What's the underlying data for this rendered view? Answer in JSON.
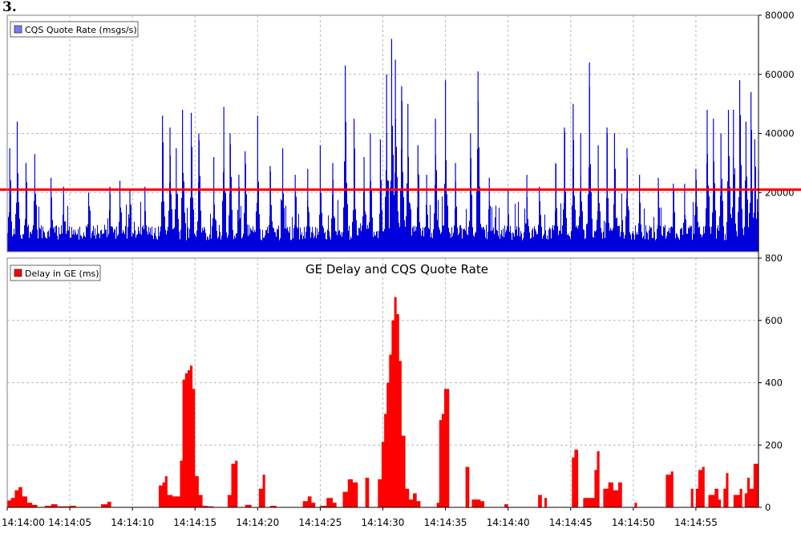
{
  "figure_label": "3.",
  "colors": {
    "rate_fill": "#0000dd",
    "delay_fill": "#ff0000",
    "threshold_line": "#ff0000",
    "grid": "#b8b8b8",
    "axis": "#000000"
  },
  "chart_data": [
    {
      "type": "area",
      "title": "",
      "legend": {
        "label": "CQS Quote Rate (msgs/s)",
        "position": "top-left",
        "swatch_color": "#7777ff"
      },
      "xlim_seconds": [
        0,
        60
      ],
      "ylim": [
        0,
        80000
      ],
      "y_ticks": [
        20000,
        40000,
        60000,
        80000
      ],
      "y_axis_side": "right",
      "grid": true,
      "threshold": 21000,
      "baseline_approx": 7000,
      "series": [
        {
          "name": "CQS Quote Rate (msgs/s)",
          "peaks": [
            [
              0.2,
              35000
            ],
            [
              0.8,
              44000
            ],
            [
              1.5,
              30000
            ],
            [
              2.2,
              33000
            ],
            [
              3.5,
              25000
            ],
            [
              4.5,
              22000
            ],
            [
              6.5,
              20000
            ],
            [
              8.2,
              22000
            ],
            [
              9.0,
              24000
            ],
            [
              9.8,
              21000
            ],
            [
              11.0,
              22000
            ],
            [
              12.4,
              46000
            ],
            [
              13.0,
              42000
            ],
            [
              13.5,
              35000
            ],
            [
              14.0,
              48000
            ],
            [
              14.7,
              47000
            ],
            [
              15.3,
              40000
            ],
            [
              16.5,
              32000
            ],
            [
              17.3,
              49000
            ],
            [
              17.8,
              40000
            ],
            [
              18.5,
              26000
            ],
            [
              19.0,
              34000
            ],
            [
              20.0,
              46000
            ],
            [
              21.0,
              29000
            ],
            [
              22.0,
              35000
            ],
            [
              23.0,
              26000
            ],
            [
              24.0,
              28000
            ],
            [
              25.0,
              36000
            ],
            [
              26.0,
              30000
            ],
            [
              27.0,
              63000
            ],
            [
              27.7,
              45000
            ],
            [
              28.5,
              32000
            ],
            [
              29.0,
              40000
            ],
            [
              29.8,
              38000
            ],
            [
              30.3,
              60000
            ],
            [
              30.7,
              72000
            ],
            [
              31.0,
              65000
            ],
            [
              31.5,
              56000
            ],
            [
              32.0,
              50000
            ],
            [
              32.8,
              36000
            ],
            [
              33.5,
              26000
            ],
            [
              34.2,
              45000
            ],
            [
              35.0,
              58000
            ],
            [
              35.8,
              30000
            ],
            [
              37.0,
              40000
            ],
            [
              37.6,
              61000
            ],
            [
              38.5,
              25000
            ],
            [
              40.0,
              21000
            ],
            [
              41.5,
              26000
            ],
            [
              42.5,
              22000
            ],
            [
              43.8,
              30000
            ],
            [
              44.5,
              42000
            ],
            [
              45.2,
              50000
            ],
            [
              45.8,
              40000
            ],
            [
              46.5,
              64000
            ],
            [
              47.2,
              36000
            ],
            [
              47.9,
              42000
            ],
            [
              48.5,
              40000
            ],
            [
              49.5,
              35000
            ],
            [
              50.5,
              26000
            ],
            [
              52.0,
              25000
            ],
            [
              53.2,
              23000
            ],
            [
              54.1,
              23000
            ],
            [
              55.0,
              28000
            ],
            [
              55.9,
              48000
            ],
            [
              56.4,
              45000
            ],
            [
              57.0,
              40000
            ],
            [
              57.6,
              48000
            ],
            [
              58.0,
              48000
            ],
            [
              58.5,
              58000
            ],
            [
              59.0,
              44000
            ],
            [
              59.4,
              54000
            ],
            [
              59.7,
              38000
            ],
            [
              60.0,
              28000
            ]
          ]
        }
      ]
    },
    {
      "type": "area",
      "title": "GE Delay and CQS Quote Rate",
      "legend": {
        "label": "Delay in GE (ms)",
        "position": "top-left",
        "swatch_color": "#ff0000"
      },
      "xlim_seconds": [
        0,
        60
      ],
      "ylim": [
        0,
        800
      ],
      "y_ticks": [
        0,
        200,
        400,
        600,
        800
      ],
      "y_axis_side": "right",
      "x_ticks": [
        "14:14:00",
        "14:14:05",
        "14:14:10",
        "14:14:15",
        "14:14:20",
        "14:14:25",
        "14:14:30",
        "14:14:35",
        "14:14:40",
        "14:14:45",
        "14:14:50",
        "14:14:55"
      ],
      "grid": true,
      "series": [
        {
          "name": "Delay in GE (ms)",
          "points": [
            [
              0,
              22
            ],
            [
              0.3,
              30
            ],
            [
              0.6,
              55
            ],
            [
              0.9,
              65
            ],
            [
              1.2,
              35
            ],
            [
              1.6,
              15
            ],
            [
              2.0,
              8
            ],
            [
              2.4,
              0
            ],
            [
              3.0,
              5
            ],
            [
              3.5,
              10
            ],
            [
              4.0,
              3
            ],
            [
              5.0,
              5
            ],
            [
              5.5,
              0
            ],
            [
              7.5,
              10
            ],
            [
              8.0,
              18
            ],
            [
              8.3,
              0
            ],
            [
              12.0,
              0
            ],
            [
              12.1,
              70
            ],
            [
              12.4,
              80
            ],
            [
              12.6,
              100
            ],
            [
              12.8,
              40
            ],
            [
              13.2,
              35
            ],
            [
              13.5,
              35
            ],
            [
              13.8,
              150
            ],
            [
              14.0,
              410
            ],
            [
              14.2,
              430
            ],
            [
              14.4,
              440
            ],
            [
              14.6,
              455
            ],
            [
              14.8,
              380
            ],
            [
              15.0,
              100
            ],
            [
              15.3,
              40
            ],
            [
              15.6,
              5
            ],
            [
              16.0,
              3
            ],
            [
              16.5,
              0
            ],
            [
              17.5,
              0
            ],
            [
              17.6,
              40
            ],
            [
              17.9,
              140
            ],
            [
              18.2,
              150
            ],
            [
              18.4,
              0
            ],
            [
              19.0,
              8
            ],
            [
              19.5,
              0
            ],
            [
              20.0,
              0
            ],
            [
              20.1,
              60
            ],
            [
              20.4,
              105
            ],
            [
              20.6,
              0
            ],
            [
              21.0,
              5
            ],
            [
              21.5,
              0
            ],
            [
              23.5,
              0
            ],
            [
              23.6,
              20
            ],
            [
              24.0,
              35
            ],
            [
              24.3,
              15
            ],
            [
              24.6,
              0
            ],
            [
              25.0,
              5
            ],
            [
              25.5,
              30
            ],
            [
              26.0,
              15
            ],
            [
              26.3,
              0
            ],
            [
              26.8,
              50
            ],
            [
              27.2,
              90
            ],
            [
              27.6,
              80
            ],
            [
              28.0,
              0
            ],
            [
              28.5,
              0
            ],
            [
              28.6,
              95
            ],
            [
              28.9,
              0
            ],
            [
              29.5,
              0
            ],
            [
              29.6,
              90
            ],
            [
              29.9,
              210
            ],
            [
              30.1,
              300
            ],
            [
              30.3,
              400
            ],
            [
              30.5,
              490
            ],
            [
              30.7,
              600
            ],
            [
              30.9,
              675
            ],
            [
              31.1,
              620
            ],
            [
              31.3,
              470
            ],
            [
              31.5,
              230
            ],
            [
              31.8,
              60
            ],
            [
              32.1,
              25
            ],
            [
              32.4,
              45
            ],
            [
              32.7,
              20
            ],
            [
              33.0,
              0
            ],
            [
              34.0,
              0
            ],
            [
              34.1,
              0
            ],
            [
              34.3,
              15
            ],
            [
              34.5,
              280
            ],
            [
              34.7,
              300
            ],
            [
              34.9,
              380
            ],
            [
              35.1,
              380
            ],
            [
              35.3,
              0
            ],
            [
              36.5,
              0
            ],
            [
              36.6,
              130
            ],
            [
              36.9,
              0
            ],
            [
              37.0,
              0
            ],
            [
              37.1,
              25
            ],
            [
              37.8,
              20
            ],
            [
              38.1,
              0
            ],
            [
              39.5,
              0
            ],
            [
              39.7,
              10
            ],
            [
              40.0,
              0
            ],
            [
              42.3,
              0
            ],
            [
              42.4,
              40
            ],
            [
              42.7,
              0
            ],
            [
              42.9,
              30
            ],
            [
              43.1,
              0
            ],
            [
              45.0,
              0
            ],
            [
              45.1,
              160
            ],
            [
              45.3,
              185
            ],
            [
              45.6,
              0
            ],
            [
              46.0,
              30
            ],
            [
              46.6,
              30
            ],
            [
              46.9,
              120
            ],
            [
              47.1,
              180
            ],
            [
              47.3,
              0
            ],
            [
              47.5,
              0
            ],
            [
              47.6,
              60
            ],
            [
              48.0,
              80
            ],
            [
              48.4,
              55
            ],
            [
              48.8,
              80
            ],
            [
              49.1,
              0
            ],
            [
              50.0,
              0
            ],
            [
              50.1,
              15
            ],
            [
              50.3,
              0
            ],
            [
              52.5,
              0
            ],
            [
              52.6,
              105
            ],
            [
              53.0,
              115
            ],
            [
              53.2,
              0
            ],
            [
              54.5,
              0
            ],
            [
              54.6,
              60
            ],
            [
              54.8,
              0
            ],
            [
              55.0,
              60
            ],
            [
              55.2,
              120
            ],
            [
              55.5,
              130
            ],
            [
              55.7,
              0
            ],
            [
              56.0,
              40
            ],
            [
              56.5,
              60
            ],
            [
              56.8,
              25
            ],
            [
              57.0,
              0
            ],
            [
              57.2,
              60
            ],
            [
              57.4,
              110
            ],
            [
              57.6,
              0
            ],
            [
              58.0,
              40
            ],
            [
              58.5,
              60
            ],
            [
              58.7,
              0
            ],
            [
              58.9,
              45
            ],
            [
              59.1,
              95
            ],
            [
              59.3,
              60
            ],
            [
              59.6,
              140
            ],
            [
              60.0,
              140
            ]
          ]
        }
      ]
    }
  ]
}
